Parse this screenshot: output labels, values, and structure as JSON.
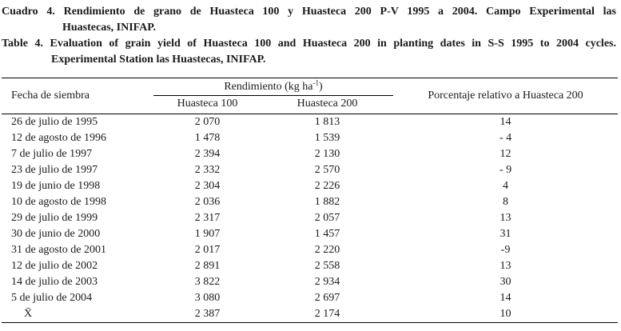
{
  "captions": {
    "es": {
      "line1": "Cuadro 4. Rendimiento de grano de Huasteca 100 y Huasteca 200 P-V 1995 a 2004. Campo Experimental las",
      "line2": "Huastecas, INIFAP."
    },
    "en": {
      "line1": "Table 4. Evaluation of grain yield of Huasteca 100 and Huasteca 200 in planting dates in S-S 1995 to 2004 cycles.",
      "line2": "Experimental Station las Huastecas, INIFAP."
    }
  },
  "table": {
    "col_date_header": "Fecha de siembra",
    "group_header": {
      "prefix": "Rendimiento (kg ha",
      "sup": "-1",
      "suffix": ")"
    },
    "sub_headers": [
      "Huasteca 100",
      "Huasteca 200"
    ],
    "col_pct_header": "Porcentaje relativo a Huasteca 200",
    "rows": [
      {
        "date": "26 de julio de 1995",
        "h100": "2 070",
        "h200": "1 813",
        "pct": "14"
      },
      {
        "date": "12 de agosto de 1996",
        "h100": "1 478",
        "h200": "1 539",
        "pct": "- 4"
      },
      {
        "date": "7 de julio de 1997",
        "h100": "2 394",
        "h200": "2 130",
        "pct": "12"
      },
      {
        "date": "23 de julio de 1997",
        "h100": "2 332",
        "h200": "2 570",
        "pct": "- 9"
      },
      {
        "date": "19 de junio de 1998",
        "h100": "2 304",
        "h200": "2 226",
        "pct": "4"
      },
      {
        "date": "10 de agosto de 1998",
        "h100": "2 036",
        "h200": "1 882",
        "pct": "8"
      },
      {
        "date": "29 de julio de 1999",
        "h100": "2 317",
        "h200": "2 057",
        "pct": "13"
      },
      {
        "date": "30 de junio de 2000",
        "h100": "1 907",
        "h200": "1 457",
        "pct": "31"
      },
      {
        "date": "31 de agosto de 2001",
        "h100": "2 017",
        "h200": "2 220",
        "pct": "-9"
      },
      {
        "date": "12 de julio de 2002",
        "h100": "2 891",
        "h200": "2 558",
        "pct": "13"
      },
      {
        "date": "14 de julio de 2003",
        "h100": "3 822",
        "h200": "2 934",
        "pct": "30"
      },
      {
        "date": "5 de julio de 2004",
        "h100": "3 080",
        "h200": "2 697",
        "pct": "14"
      },
      {
        "date": "X̄",
        "h100": "2 387",
        "h200": "2 174",
        "pct": "10",
        "mean": true
      }
    ]
  }
}
